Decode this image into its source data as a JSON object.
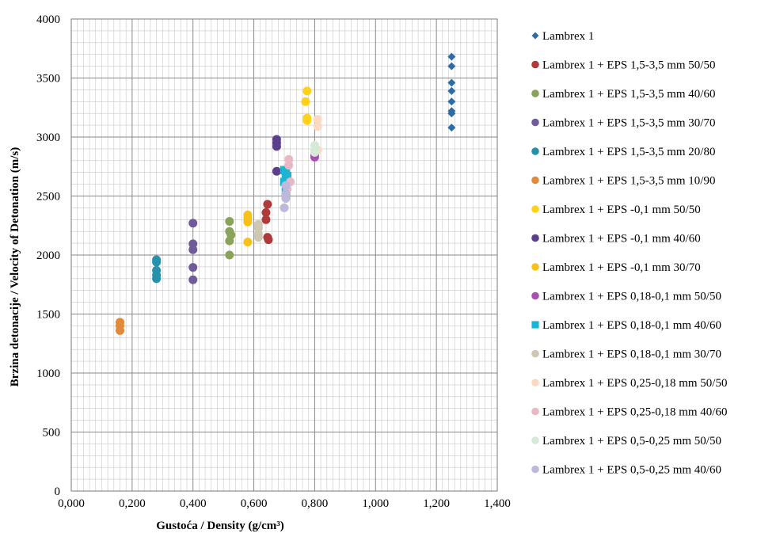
{
  "chart_data": {
    "type": "scatter",
    "title": "",
    "xlabel": "Gustoća / Density (g/cm³)",
    "ylabel": "Brzina detonacije / Velocity of Detonation (m/s)",
    "xlim": [
      0,
      1.4
    ],
    "ylim": [
      0,
      4000
    ],
    "x_ticks": [
      "0,000",
      "0,200",
      "0,400",
      "0,600",
      "0,800",
      "1,000",
      "1,200",
      "1,400"
    ],
    "y_ticks": [
      "0",
      "500",
      "1000",
      "1500",
      "2000",
      "2500",
      "3000",
      "3500",
      "4000"
    ],
    "grid": true,
    "legend_position": "right",
    "series": [
      {
        "name": "Lambrex 1",
        "marker": "diamond",
        "color": "#2e6da4",
        "points": [
          [
            1.25,
            3680
          ],
          [
            1.25,
            3600
          ],
          [
            1.25,
            3460
          ],
          [
            1.25,
            3390
          ],
          [
            1.25,
            3300
          ],
          [
            1.25,
            3220
          ],
          [
            1.25,
            3200
          ],
          [
            1.25,
            3080
          ]
        ]
      },
      {
        "name": "Lambrex 1 + EPS 1,5-3,5 mm 50/50",
        "marker": "circle",
        "color": "#b03a3a",
        "points": [
          [
            0.645,
            2430
          ],
          [
            0.64,
            2360
          ],
          [
            0.64,
            2300
          ],
          [
            0.645,
            2150
          ],
          [
            0.648,
            2130
          ]
        ]
      },
      {
        "name": "Lambrex 1 + EPS 1,5-3,5 mm 40/60",
        "marker": "circle",
        "color": "#8aa35a",
        "points": [
          [
            0.52,
            2285
          ],
          [
            0.52,
            2200
          ],
          [
            0.525,
            2170
          ],
          [
            0.52,
            2120
          ],
          [
            0.52,
            2000
          ]
        ]
      },
      {
        "name": "Lambrex 1 + EPS 1,5-3,5 mm 30/70",
        "marker": "circle",
        "color": "#6f5b99",
        "points": [
          [
            0.4,
            2270
          ],
          [
            0.4,
            2095
          ],
          [
            0.4,
            2045
          ],
          [
            0.4,
            1895
          ],
          [
            0.4,
            1790
          ]
        ]
      },
      {
        "name": "Lambrex 1 + EPS 1,5-3,5 mm 20/80",
        "marker": "circle",
        "color": "#2791ab",
        "points": [
          [
            0.28,
            1960
          ],
          [
            0.28,
            1940
          ],
          [
            0.28,
            1870
          ],
          [
            0.28,
            1830
          ],
          [
            0.28,
            1800
          ]
        ]
      },
      {
        "name": "Lambrex 1 + EPS 1,5-3,5 mm 10/90",
        "marker": "circle",
        "color": "#e08a3c",
        "points": [
          [
            0.16,
            1430
          ],
          [
            0.16,
            1400
          ],
          [
            0.16,
            1360
          ]
        ]
      },
      {
        "name": "Lambrex 1 + EPS -0,1 mm 50/50",
        "marker": "circle",
        "color": "#ffd11a",
        "points": [
          [
            0.775,
            3390
          ],
          [
            0.77,
            3300
          ],
          [
            0.775,
            3160
          ],
          [
            0.775,
            3140
          ]
        ]
      },
      {
        "name": "Lambrex 1 + EPS -0,1 mm 40/60",
        "marker": "circle",
        "color": "#5b3f8c",
        "points": [
          [
            0.675,
            2980
          ],
          [
            0.675,
            2950
          ],
          [
            0.675,
            2920
          ],
          [
            0.675,
            2710
          ]
        ]
      },
      {
        "name": "Lambrex 1 + EPS -0,1 mm 30/70",
        "marker": "circle",
        "color": "#f7c11a",
        "points": [
          [
            0.58,
            2340
          ],
          [
            0.58,
            2310
          ],
          [
            0.58,
            2280
          ],
          [
            0.58,
            2110
          ]
        ]
      },
      {
        "name": "Lambrex 1 + EPS 0,18-0,1 mm 50/50",
        "marker": "circle",
        "color": "#a84fb0",
        "points": [
          [
            0.8,
            2850
          ],
          [
            0.8,
            2830
          ]
        ]
      },
      {
        "name": "Lambrex 1 + EPS 0,18-0,1 mm 40/60",
        "marker": "square",
        "color": "#1ab5d0",
        "points": [
          [
            0.7,
            2720
          ],
          [
            0.705,
            2690
          ],
          [
            0.71,
            2670
          ],
          [
            0.7,
            2620
          ],
          [
            0.705,
            2540
          ]
        ]
      },
      {
        "name": "Lambrex 1 + EPS 0,18-0,1 mm 30/70",
        "marker": "circle",
        "color": "#cfc7b4",
        "points": [
          [
            0.615,
            2260
          ],
          [
            0.615,
            2230
          ],
          [
            0.615,
            2180
          ],
          [
            0.615,
            2150
          ]
        ]
      },
      {
        "name": "Lambrex 1 + EPS 0,25-0,18 mm 50/50",
        "marker": "circle",
        "color": "#fbd9c3",
        "points": [
          [
            0.81,
            3150
          ],
          [
            0.81,
            3090
          ],
          [
            0.81,
            2890
          ]
        ]
      },
      {
        "name": "Lambrex 1 + EPS 0,25-0,18 mm 40/60",
        "marker": "circle",
        "color": "#e8b9c4",
        "points": [
          [
            0.715,
            2810
          ],
          [
            0.715,
            2760
          ],
          [
            0.72,
            2620
          ],
          [
            0.71,
            2560
          ]
        ]
      },
      {
        "name": "Lambrex 1 + EPS 0,5-0,25 mm 50/50",
        "marker": "circle",
        "color": "#d4ead6",
        "points": [
          [
            0.8,
            2930
          ],
          [
            0.8,
            2890
          ],
          [
            0.8,
            2870
          ]
        ]
      },
      {
        "name": "Lambrex 1 + EPS 0,5-0,25 mm 40/60",
        "marker": "circle",
        "color": "#bdb8dc",
        "points": [
          [
            0.705,
            2590
          ],
          [
            0.705,
            2520
          ],
          [
            0.705,
            2480
          ],
          [
            0.7,
            2400
          ]
        ]
      }
    ]
  }
}
